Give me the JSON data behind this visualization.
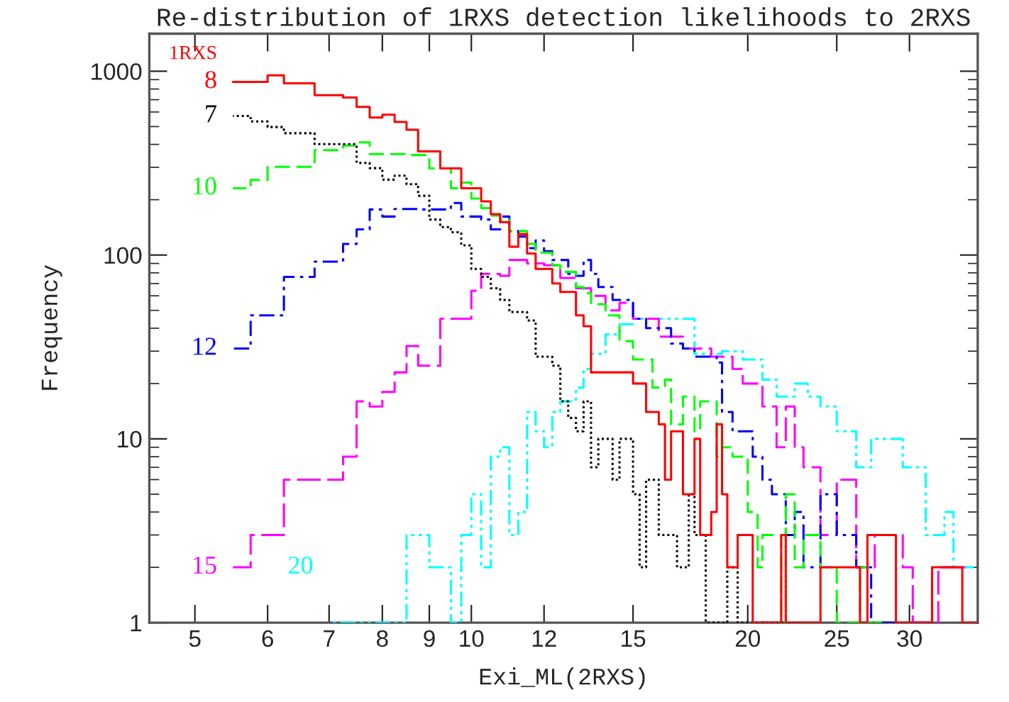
{
  "chart_data": {
    "type": "step",
    "title": "Re-distribution of 1RXS detection likelihoods to 2RXS",
    "xlabel": "Exi_ML(2RXS)",
    "ylabel": "Frequency",
    "annotations": [
      "1RXS"
    ],
    "log": "xy",
    "grid": false,
    "xlim": [
      4.46,
      35.6
    ],
    "xticks": [
      5,
      6,
      7,
      8,
      9,
      10,
      12,
      15,
      20,
      25,
      30
    ],
    "ylim": [
      1,
      1600
    ],
    "yticks": [
      1,
      10,
      100,
      1000
    ],
    "series": [
      {
        "name": "8",
        "color": "#ff0000",
        "line_style": "solid",
        "x": [
          5.5,
          6.0,
          6.25,
          6.75,
          7.25,
          7.5,
          7.75,
          8.0,
          8.25,
          8.5,
          8.75,
          9.25,
          9.75,
          10.25,
          10.5,
          10.75,
          11.0,
          11.25,
          11.5,
          11.75,
          12.25,
          12.5,
          13.0,
          13.25,
          13.5,
          15.0,
          15.5,
          16.0,
          16.25,
          16.5,
          17.0,
          17.5,
          17.75,
          18.25,
          18.5,
          18.75,
          19.0,
          19.5,
          20.25,
          21.75,
          22.0,
          24.0,
          26.5,
          27.0,
          29.0,
          31.75,
          34.25,
          35.5
        ],
        "values": [
          875,
          950,
          860,
          740,
          720,
          640,
          560,
          580,
          530,
          480,
          366,
          296,
          231,
          196,
          167,
          151,
          111,
          130,
          102,
          84,
          70,
          63,
          47,
          41,
          23,
          20,
          14,
          12,
          6,
          11,
          5,
          10,
          3,
          4,
          12,
          5,
          2,
          3,
          1,
          3,
          1,
          2,
          1,
          3,
          1,
          2,
          1,
          1
        ]
      },
      {
        "name": "7",
        "color": "#000000",
        "line_style": "dotted",
        "x": [
          5.5,
          5.75,
          6.0,
          6.25,
          6.75,
          7.5,
          7.75,
          8.0,
          8.25,
          8.5,
          8.75,
          9.0,
          9.25,
          9.5,
          9.75,
          10.0,
          10.25,
          10.5,
          10.75,
          11.0,
          11.5,
          11.75,
          12.25,
          12.5,
          12.75,
          13.0,
          13.25,
          13.5,
          13.75,
          14.25,
          14.5,
          14.75,
          15.0,
          15.25,
          15.5,
          16.0,
          16.75,
          17.25,
          17.5,
          18.0,
          19.0,
          19.5,
          22.0,
          22.25
        ],
        "values": [
          571,
          533,
          497,
          460,
          401,
          317,
          297,
          257,
          270,
          243,
          210,
          156,
          142,
          133,
          113,
          84,
          76,
          66,
          57,
          49,
          44,
          28,
          25,
          16,
          13,
          11,
          16,
          7,
          10,
          6,
          10,
          10,
          5,
          2,
          6,
          3,
          2,
          5,
          3,
          1,
          2,
          1,
          3,
          3
        ]
      },
      {
        "name": "10",
        "color": "#00ff00",
        "line_style": "dashed",
        "x": [
          5.5,
          5.75,
          6.0,
          6.75,
          7.25,
          7.5,
          7.75,
          8.5,
          9.0,
          9.5,
          9.75,
          10.0,
          10.25,
          10.5,
          10.75,
          11.0,
          11.5,
          11.75,
          12.25,
          12.5,
          13.0,
          13.25,
          13.5,
          14.0,
          14.5,
          15.0,
          15.75,
          16.25,
          16.5,
          17.0,
          17.5,
          17.75,
          18.5,
          18.75,
          19.25,
          20.0,
          20.5,
          20.75,
          21.75,
          22.0,
          22.5,
          23.0,
          24.0,
          25.0,
          26.5,
          27.0,
          28.0
        ],
        "values": [
          231,
          256,
          302,
          372,
          394,
          410,
          354,
          350,
          296,
          231,
          248,
          203,
          180,
          164,
          156,
          135,
          115,
          103,
          88,
          81,
          67,
          62,
          54,
          47,
          34,
          27,
          19,
          21,
          12,
          17,
          11,
          16,
          8,
          9,
          8,
          4,
          2,
          3,
          1,
          5,
          2,
          3,
          2,
          1,
          2,
          1,
          1
        ]
      },
      {
        "name": "12",
        "color": "#0000ff",
        "line_style": "dashdot",
        "x": [
          5.5,
          5.75,
          6.25,
          6.75,
          7.25,
          7.5,
          7.75,
          8.0,
          8.25,
          8.75,
          9.5,
          9.75,
          10.25,
          10.5,
          10.75,
          11.0,
          11.25,
          11.5,
          11.75,
          12.0,
          12.25,
          12.75,
          13.0,
          13.25,
          13.5,
          13.75,
          14.25,
          15.0,
          15.5,
          16.5,
          17.0,
          17.5,
          18.5,
          18.75,
          19.25,
          20.25,
          20.75,
          21.25,
          22.0,
          22.5,
          23.0,
          24.0,
          25.0,
          26.25,
          27.25,
          29.0
        ],
        "values": [
          31,
          47,
          76,
          92,
          115,
          138,
          177,
          162,
          178,
          177,
          192,
          162,
          156,
          138,
          162,
          135,
          126,
          109,
          120,
          105,
          94,
          79,
          77,
          94,
          79,
          67,
          57,
          45,
          40,
          33,
          31,
          28,
          26,
          14,
          11,
          8,
          6,
          5,
          3,
          4,
          2,
          5,
          3,
          2,
          1,
          1
        ]
      },
      {
        "name": "15",
        "color": "#ff00ff",
        "line_style": "longdash",
        "x": [
          5.5,
          5.75,
          6.25,
          7.25,
          7.5,
          7.75,
          8.0,
          8.25,
          8.5,
          8.75,
          9.25,
          10.0,
          10.25,
          10.75,
          11.0,
          11.5,
          12.0,
          12.5,
          13.0,
          13.5,
          14.0,
          14.5,
          15.0,
          16.0,
          17.0,
          18.25,
          19.25,
          19.75,
          20.75,
          21.5,
          22.0,
          22.5,
          23.0,
          24.0,
          25.0,
          26.25,
          27.5,
          29.5,
          30.25,
          32.25,
          34.5
        ],
        "values": [
          2,
          3,
          6,
          8,
          16,
          15,
          18,
          23,
          32,
          25,
          45,
          64,
          79,
          77,
          94,
          90,
          88,
          75,
          66,
          60,
          50,
          55,
          45,
          36,
          31,
          28,
          24,
          20,
          15,
          9,
          15,
          9,
          7,
          3,
          6,
          2,
          3,
          2,
          1,
          2,
          2
        ]
      },
      {
        "name": "20",
        "color": "#00ffff",
        "line_style": "dashdotdot",
        "x": [
          7.0,
          8.5,
          8.75,
          9.0,
          9.5,
          9.75,
          10.0,
          10.25,
          10.5,
          10.75,
          11.0,
          11.25,
          11.5,
          11.75,
          12.0,
          12.25,
          12.5,
          13.0,
          13.25,
          13.5,
          14.0,
          14.5,
          15.0,
          17.5,
          18.75,
          19.75,
          20.75,
          21.5,
          22.5,
          23.25,
          24.0,
          25.0,
          26.25,
          27.25,
          29.5,
          31.25,
          32.75,
          33.5,
          35.25
        ],
        "values": [
          1,
          3,
          3,
          2,
          1,
          3,
          5,
          2,
          8,
          9,
          3,
          4,
          14,
          11,
          9,
          14,
          16,
          19,
          24,
          29,
          37,
          42,
          45,
          29,
          30,
          27,
          21,
          17,
          20,
          17,
          15,
          11,
          7,
          10,
          7,
          3,
          4,
          2,
          2
        ]
      }
    ]
  }
}
